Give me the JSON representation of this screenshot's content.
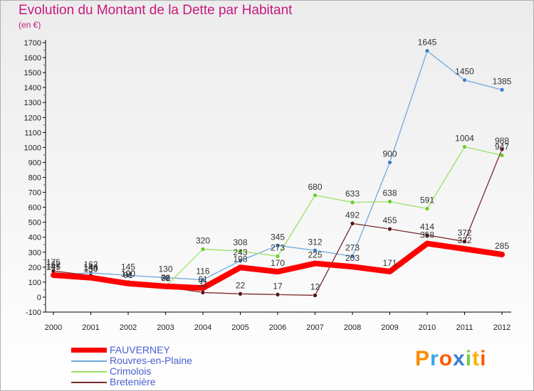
{
  "header": {
    "title": "Evolution du Montant de la Dette par Habitant",
    "subtitle": "(en €)"
  },
  "logo": {
    "text": "Proxiti"
  },
  "colors": {
    "FAUVERNEY": "#ff0000",
    "Rouvres-en-Plaine": "#6fa8dc",
    "Crimolois": "#99e066",
    "Bretenière": "#7a2a2a",
    "title": "#c8187e",
    "legend_text": "#4a5fd0"
  },
  "chart_data": {
    "type": "line",
    "title": "Evolution du Montant de la Dette par Habitant",
    "subtitle": "(en €)",
    "xlabel": "",
    "ylabel": "",
    "x": [
      "2000",
      "2001",
      "2002",
      "2003",
      "2004",
      "2005",
      "2006",
      "2007",
      "2008",
      "2009",
      "2010",
      "2011",
      "2012"
    ],
    "ylim": [
      -100,
      1700
    ],
    "yticks": [
      -100,
      0,
      100,
      200,
      300,
      400,
      500,
      600,
      700,
      800,
      900,
      1000,
      1100,
      1200,
      1300,
      1400,
      1500,
      1600,
      1700
    ],
    "grid": false,
    "legend_position": "bottom-left",
    "series": [
      {
        "name": "FAUVERNEY",
        "values": [
          147,
          130,
          91,
          72,
          61,
          198,
          170,
          225,
          203,
          171,
          358,
          322,
          285
        ],
        "labels": [
          "147",
          "130",
          "91",
          "72",
          "61",
          "198",
          "170",
          "225",
          "203",
          "171",
          "358",
          "322",
          "285"
        ]
      },
      {
        "name": "Rouvres-en-Plaine",
        "values": [
          145,
          162,
          145,
          130,
          116,
          243,
          345,
          312,
          273,
          900,
          1645,
          1450,
          1385
        ],
        "labels": [
          "145",
          "162",
          "145",
          "130",
          "116",
          "243",
          "345",
          "312",
          "273",
          "900",
          "1645",
          "1450",
          "1385"
        ]
      },
      {
        "name": "Crimolois",
        "values": [
          162,
          140,
          100,
          71,
          320,
          308,
          273,
          680,
          633,
          638,
          591,
          1004,
          947
        ],
        "labels": [
          "162",
          "140",
          "100",
          "71",
          "320",
          "308",
          "273",
          "680",
          "633",
          "638",
          "591",
          "1004",
          "947"
        ]
      },
      {
        "name": "Bretenière",
        "values": [
          175,
          144,
          100,
          68,
          31,
          22,
          17,
          12,
          492,
          455,
          414,
          372,
          988
        ],
        "labels": [
          "175",
          "144",
          "100",
          "68",
          "31",
          "22",
          "17",
          "12",
          "492",
          "455",
          "414",
          "372",
          "988"
        ]
      }
    ]
  }
}
